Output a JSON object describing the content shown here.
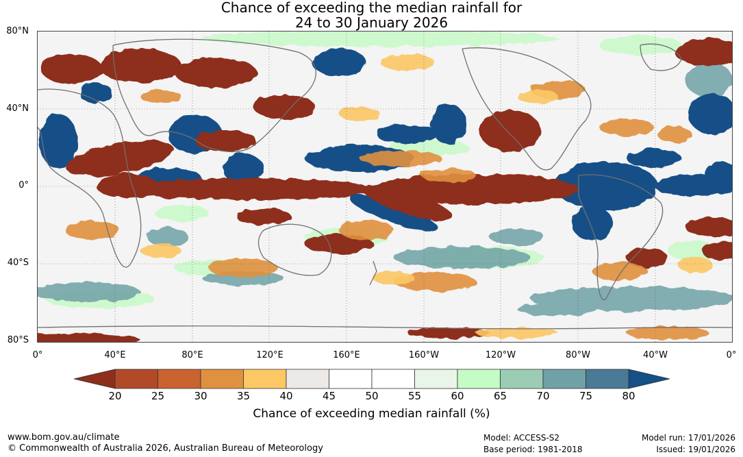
{
  "title_line1": "Chance of exceeding the median rainfall for",
  "title_line2": "24 to 30 January 2026",
  "map": {
    "lat_labels": [
      "80°N",
      "40°N",
      "0°",
      "40°S",
      "80°S"
    ],
    "lon_labels": [
      "0°",
      "40°E",
      "80°E",
      "120°E",
      "160°E",
      "160°W",
      "120°W",
      "80°W",
      "40°W",
      "0°"
    ],
    "lat_range": [
      -80,
      80
    ],
    "lon_range": [
      0,
      360
    ],
    "gridlines": "dotted"
  },
  "colorbar": {
    "ticks": [
      "20",
      "25",
      "30",
      "35",
      "40",
      "45",
      "50",
      "55",
      "60",
      "65",
      "70",
      "75",
      "80"
    ],
    "colors": [
      "#8e2f1b",
      "#b14b27",
      "#c9632f",
      "#e0913f",
      "#fcc765",
      "#ece9e6",
      "#ffffff",
      "#ffffff",
      "#eaf5ea",
      "#c5fbc5",
      "#9ccdb4",
      "#6fa1a6",
      "#4a7a95",
      "#155087"
    ],
    "label": "Chance of exceeding median rainfall (%)",
    "extend": "both"
  },
  "footer": {
    "url": "www.bom.gov.au/climate",
    "copyright": "© Commonwealth of Australia 2026, Australian Bureau of Meteorology",
    "model": "Model: ACCESS-S2",
    "base_period": "Base period: 1981-2018",
    "model_run": "Model run: 17/01/2026",
    "issued": "Issued: 19/01/2026"
  }
}
